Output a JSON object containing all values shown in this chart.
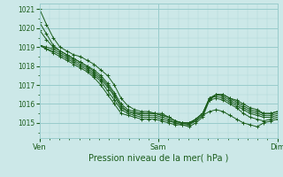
{
  "title": "Pression niveau de la mer( hPa )",
  "bg_color": "#cce8e8",
  "grid_major_color": "#99cccc",
  "grid_minor_color": "#b3d9d9",
  "line_color": "#1a5c1a",
  "marker_color": "#1a5c1a",
  "ylim": [
    1014.2,
    1021.3
  ],
  "yticks": [
    1015,
    1016,
    1017,
    1018,
    1019,
    1020,
    1021
  ],
  "xtick_labels": [
    "Ven",
    "Sam",
    "Dim"
  ],
  "xtick_pos": [
    0,
    1,
    2
  ],
  "series": [
    [
      1021.0,
      1020.2,
      1019.5,
      1019.0,
      1018.8,
      1018.6,
      1018.5,
      1018.3,
      1018.1,
      1017.8,
      1017.5,
      1017.0,
      1016.3,
      1015.9,
      1015.7,
      1015.6,
      1015.6,
      1015.5,
      1015.5,
      1015.3,
      1015.1,
      1015.0,
      1015.0,
      1015.1,
      1015.4,
      1015.6,
      1015.7,
      1015.6,
      1015.4,
      1015.2,
      1015.0,
      1014.9,
      1014.8,
      1015.0,
      1015.1,
      1015.2
    ],
    [
      1020.3,
      1019.7,
      1019.1,
      1018.8,
      1018.6,
      1018.4,
      1018.2,
      1018.0,
      1017.8,
      1017.5,
      1017.1,
      1016.6,
      1016.0,
      1015.7,
      1015.6,
      1015.5,
      1015.5,
      1015.5,
      1015.4,
      1015.3,
      1015.1,
      1015.0,
      1015.0,
      1015.2,
      1015.5,
      1016.2,
      1016.3,
      1016.2,
      1016.0,
      1015.8,
      1015.5,
      1015.3,
      1015.2,
      1015.1,
      1015.2,
      1015.3
    ],
    [
      1019.9,
      1019.4,
      1019.0,
      1018.8,
      1018.6,
      1018.4,
      1018.2,
      1018.0,
      1017.7,
      1017.4,
      1017.0,
      1016.5,
      1015.9,
      1015.6,
      1015.5,
      1015.5,
      1015.5,
      1015.5,
      1015.4,
      1015.3,
      1015.1,
      1015.0,
      1015.0,
      1015.2,
      1015.5,
      1016.3,
      1016.4,
      1016.3,
      1016.1,
      1015.9,
      1015.7,
      1015.5,
      1015.4,
      1015.3,
      1015.3,
      1015.4
    ],
    [
      1019.1,
      1019.0,
      1018.9,
      1018.7,
      1018.5,
      1018.3,
      1018.1,
      1017.9,
      1017.6,
      1017.3,
      1016.9,
      1016.4,
      1015.8,
      1015.6,
      1015.5,
      1015.4,
      1015.4,
      1015.4,
      1015.3,
      1015.2,
      1015.0,
      1015.0,
      1014.9,
      1015.2,
      1015.5,
      1016.3,
      1016.5,
      1016.4,
      1016.2,
      1016.0,
      1015.8,
      1015.6,
      1015.5,
      1015.4,
      1015.4,
      1015.5
    ],
    [
      1019.1,
      1018.9,
      1018.8,
      1018.6,
      1018.4,
      1018.2,
      1018.0,
      1017.8,
      1017.5,
      1017.2,
      1016.7,
      1016.2,
      1015.7,
      1015.5,
      1015.4,
      1015.3,
      1015.3,
      1015.3,
      1015.2,
      1015.1,
      1015.0,
      1014.9,
      1014.9,
      1015.1,
      1015.4,
      1016.3,
      1016.5,
      1016.5,
      1016.3,
      1016.1,
      1015.9,
      1015.7,
      1015.6,
      1015.5,
      1015.5,
      1015.6
    ],
    [
      1019.1,
      1018.9,
      1018.7,
      1018.5,
      1018.3,
      1018.1,
      1017.9,
      1017.7,
      1017.4,
      1017.0,
      1016.5,
      1016.0,
      1015.5,
      1015.4,
      1015.3,
      1015.2,
      1015.2,
      1015.2,
      1015.1,
      1015.0,
      1014.9,
      1014.9,
      1014.8,
      1015.0,
      1015.3,
      1016.2,
      1016.5,
      1016.5,
      1016.3,
      1016.2,
      1016.0,
      1015.8,
      1015.7,
      1015.5,
      1015.5,
      1015.6
    ]
  ],
  "figsize": [
    3.2,
    2.0
  ],
  "dpi": 100
}
